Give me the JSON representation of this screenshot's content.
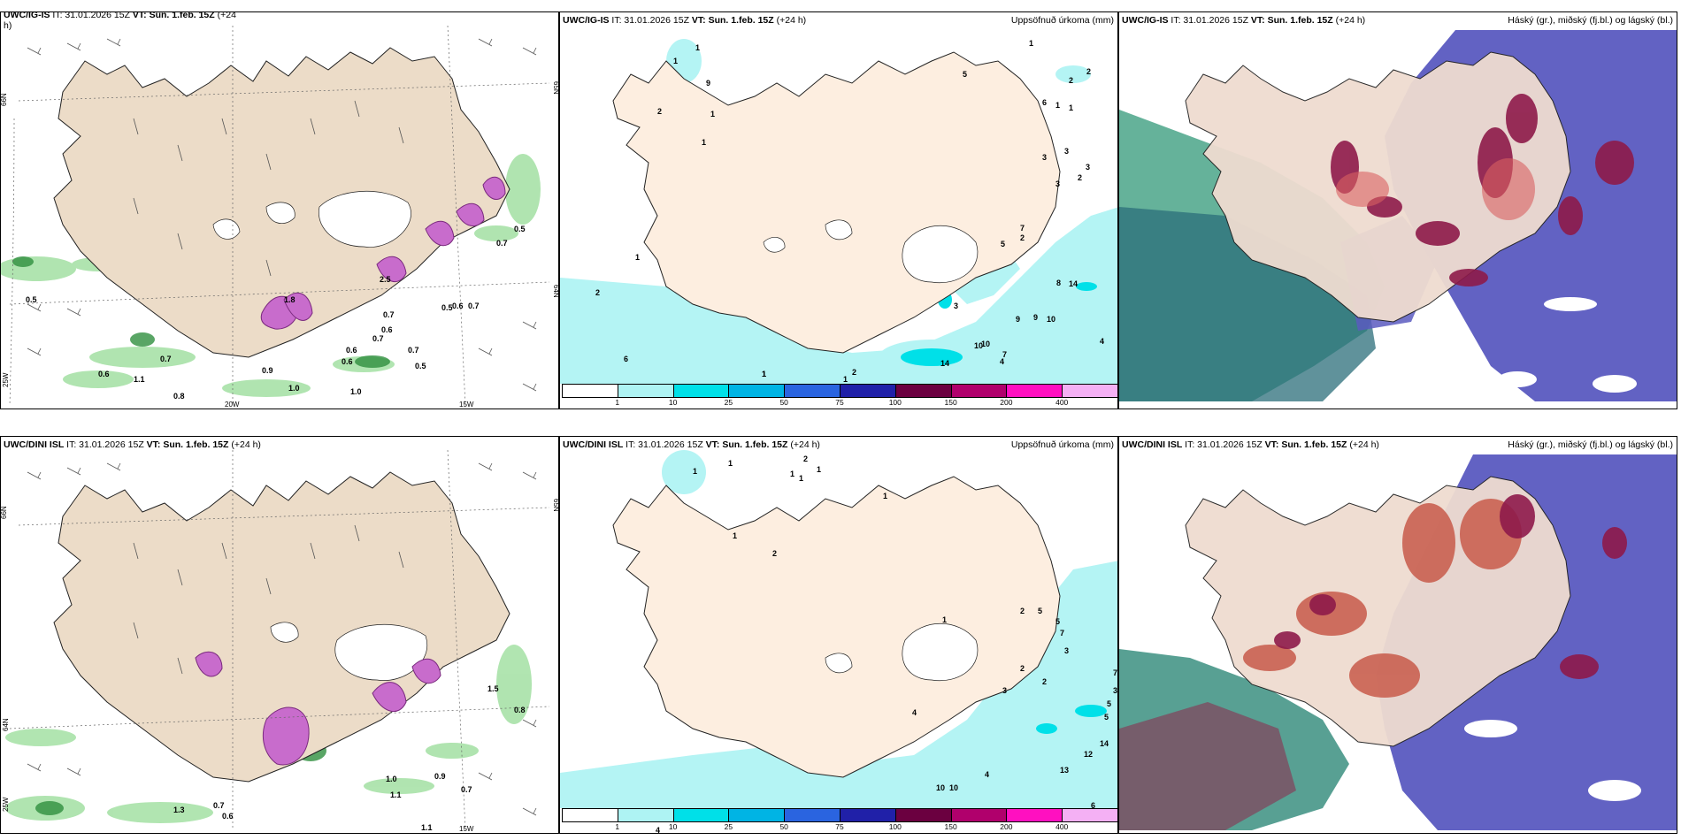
{
  "panels": {
    "tl": {
      "header_bold": "UWC/IG-IS",
      "header_it": " IT: 31.01.2026 15Z ",
      "header_vt": "VT: Sun. 1.feb. 15Z",
      "header_tail": " (+24",
      "header_tail2": "h)",
      "right_title": ""
    },
    "tm": {
      "header_bold": "UWC/IG-IS",
      "header_it": " IT: 31.01.2026 15Z ",
      "header_vt": "VT: Sun. 1.feb. 15Z",
      "header_tail": " (+24 h)",
      "right_title": "Uppsöfnuð úrkoma (mm)"
    },
    "tr": {
      "header_bold": "UWC/IG-IS",
      "header_it": " IT: 31.01.2026 15Z ",
      "header_vt": "VT: Sun. 1.feb. 15Z",
      "header_tail": " (+24 h)",
      "right_title": "Háský (gr.), miðský (fj.bl.) og lágský (bl.)"
    },
    "bl": {
      "header_bold": "UWC/DINI ISL",
      "header_it": " IT: 31.01.2026 15Z ",
      "header_vt": "VT: Sun. 1.feb. 15Z",
      "header_tail": " (+24 h)",
      "right_title": ""
    },
    "bm": {
      "header_bold": "UWC/DINI ISL",
      "header_it": " IT: 31.01.2026 15Z ",
      "header_vt": "VT: Sun. 1.feb. 15Z",
      "header_tail": " (+24 h)",
      "right_title": "Uppsöfnuð úrkoma (mm)"
    },
    "br": {
      "header_bold": "UWC/DINI ISL",
      "header_it": " IT: 31.01.2026 15Z ",
      "header_vt": "VT: Sun. 1.feb. 15Z",
      "header_tail": " (+24 h)",
      "right_title": "Háský (gr.), miðský (fj.bl.) og lágský (bl.)"
    }
  },
  "axis_labels": {
    "lat66": "66N",
    "lat65": "65N",
    "lat64": "64N",
    "lon20": "20W",
    "lon15": "15W",
    "lon25": "25W"
  },
  "legend": {
    "ticks": [
      "1",
      "10",
      "25",
      "50",
      "75",
      "100",
      "150",
      "200",
      "400"
    ],
    "colors": [
      "#ffffff",
      "#aef3f3",
      "#00e0e8",
      "#00b4e4",
      "#2a64e0",
      "#2020a8",
      "#6b0040",
      "#b0006c",
      "#ff10c0",
      "#f4b0f4"
    ]
  },
  "wind_values_top": [
    "0.5",
    "0.7",
    "0.6",
    "0.5",
    "0.7",
    "0.6",
    "0.7",
    "0.5",
    "0.6",
    "0.9",
    "1.0",
    "1.1",
    "0.8",
    "1.0",
    "1.8",
    "2.5",
    "0.7",
    "0.6",
    "0.5",
    "0.7",
    "0.7",
    "0.6"
  ],
  "wind_values_bottom": [
    "0.9",
    "0.7",
    "1.0",
    "1.1",
    "0.7",
    "0.6",
    "1.5",
    "0.8",
    "1.3",
    "1.1"
  ],
  "precip_values_top": [
    "1",
    "2",
    "1",
    "6",
    "9",
    "1",
    "1",
    "5",
    "2",
    "1",
    "2",
    "1",
    "1",
    "1",
    "1",
    "3",
    "3",
    "2",
    "7",
    "5",
    "3",
    "2",
    "8",
    "14",
    "9",
    "9",
    "10",
    "10",
    "10",
    "7",
    "4",
    "14",
    "2",
    "2",
    "1",
    "6",
    "1",
    "1",
    "3",
    "3",
    "4"
  ],
  "precip_values_bottom": [
    "1",
    "1",
    "2",
    "1",
    "1",
    "1",
    "4",
    "1",
    "2",
    "1",
    "5",
    "5",
    "7",
    "3",
    "5",
    "14",
    "12",
    "13",
    "2",
    "6",
    "10",
    "10",
    "4",
    "4",
    "3",
    "1",
    "2",
    "7",
    "3",
    "5",
    "2"
  ]
}
